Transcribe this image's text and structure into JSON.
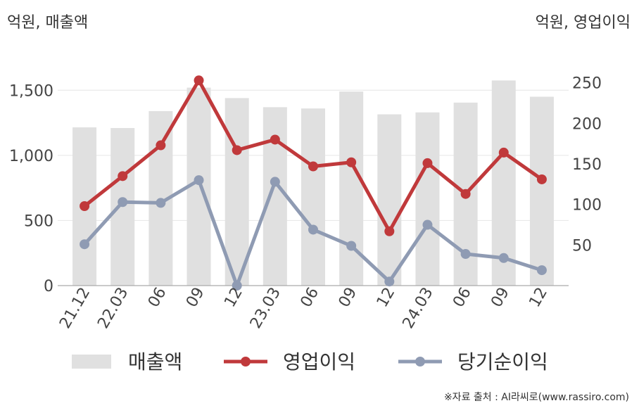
{
  "unit_left": "억원, 매출액",
  "unit_right": "억원, 영업이익",
  "source": "※자료 출처 : AI라씨로(www.rassiro.com)",
  "chart_data": {
    "type": "bar+line",
    "categories": [
      "21.12",
      "22.03",
      "06",
      "09",
      "12",
      "23.03",
      "06",
      "09",
      "12",
      "24.03",
      "06",
      "09",
      "12"
    ],
    "left_axis": {
      "ylim": [
        0,
        1750
      ],
      "ticks": [
        0,
        500,
        1000,
        1500
      ],
      "tick_labels": [
        "0",
        "500",
        "1,000",
        "1,500"
      ]
    },
    "right_axis": {
      "ylim": [
        0,
        281
      ],
      "ticks": [
        50,
        100,
        150,
        200,
        250
      ],
      "tick_labels": [
        "50",
        "100",
        "150",
        "200",
        "250"
      ]
    },
    "series": [
      {
        "name": "매출액",
        "type": "bar",
        "axis": "left",
        "color": "#e0e0e0",
        "values": [
          1215,
          1210,
          1340,
          1520,
          1440,
          1370,
          1360,
          1490,
          1315,
          1330,
          1405,
          1575,
          1450
        ]
      },
      {
        "name": "영업이익",
        "type": "line",
        "axis": "right",
        "color": "#c0393b",
        "values": [
          98,
          135,
          173,
          253,
          167,
          180,
          147,
          152,
          67,
          151,
          113,
          164,
          131
        ]
      },
      {
        "name": "당기순이익",
        "type": "line",
        "axis": "right",
        "color": "#8f9bb3",
        "values": [
          51,
          103,
          102,
          130,
          0,
          128,
          69,
          49,
          5,
          75,
          39,
          34,
          19
        ]
      }
    ],
    "legend_position": "bottom",
    "grid": true
  }
}
